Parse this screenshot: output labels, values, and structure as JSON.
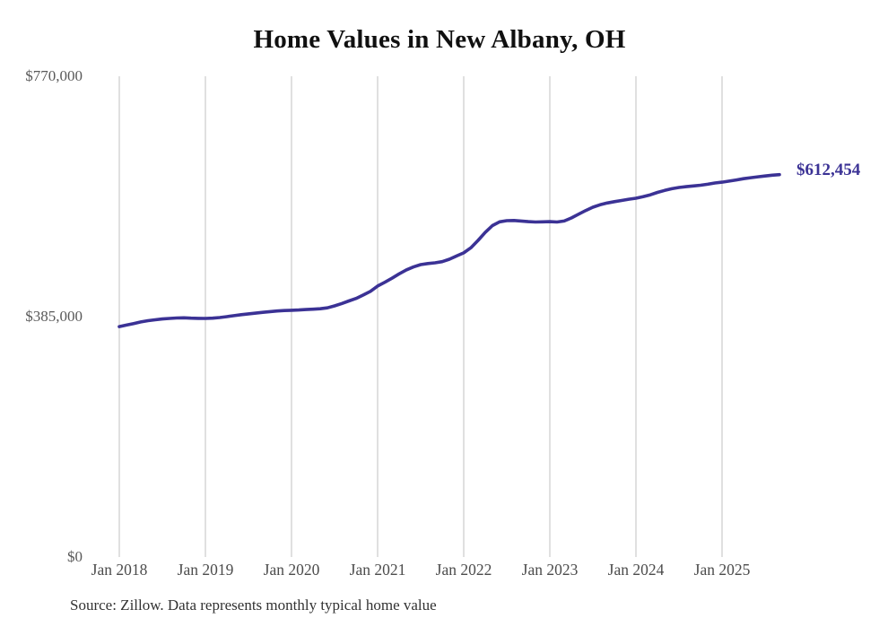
{
  "chart_data": {
    "type": "line",
    "title": "Home Values in New Albany, OH",
    "source": "Source: Zillow. Data represents monthly typical home value",
    "end_label": "$612,454",
    "end_value": 612454,
    "line_color": "#3b3295",
    "grid_color": "#c2c2c2",
    "grid": "vertical-only",
    "legend": "none",
    "ylim": [
      0,
      770000
    ],
    "y_ticks": [
      {
        "label": "$770,000",
        "value": 770000
      },
      {
        "label": "$385,000",
        "value": 385000
      },
      {
        "label": "$0",
        "value": 0
      }
    ],
    "x_ticks": [
      "Jan 2018",
      "Jan 2019",
      "Jan 2020",
      "Jan 2021",
      "Jan 2022",
      "Jan 2023",
      "Jan 2024",
      "Jan 2025"
    ],
    "x_start": "Jan 2018",
    "x_end": "Sep 2025",
    "x_interval": "monthly",
    "series": [
      {
        "name": "Typical home value",
        "values": [
          369000,
          371500,
          374000,
          376500,
          378500,
          380000,
          381200,
          382100,
          382900,
          383100,
          382600,
          382200,
          382100,
          382600,
          383500,
          385000,
          386600,
          388100,
          389400,
          390600,
          391900,
          393000,
          394000,
          394700,
          395200,
          395700,
          396300,
          396900,
          397600,
          399100,
          402200,
          406000,
          410100,
          414200,
          419600,
          425500,
          434000,
          440000,
          446500,
          453500,
          459800,
          464600,
          468300,
          470100,
          471200,
          473100,
          477000,
          482100,
          487200,
          495300,
          507100,
          519900,
          530800,
          536900,
          538700,
          539000,
          538200,
          537100,
          536500,
          536800,
          537200,
          536600,
          538100,
          543000,
          549100,
          555000,
          560200,
          564100,
          567000,
          569100,
          571000,
          573000,
          574600,
          577000,
          580100,
          584000,
          587100,
          589900,
          591800,
          593100,
          594300,
          595500,
          597100,
          599000,
          600400,
          602100,
          604000,
          605900,
          607500,
          609000,
          610300,
          611500,
          612454
        ]
      }
    ]
  }
}
